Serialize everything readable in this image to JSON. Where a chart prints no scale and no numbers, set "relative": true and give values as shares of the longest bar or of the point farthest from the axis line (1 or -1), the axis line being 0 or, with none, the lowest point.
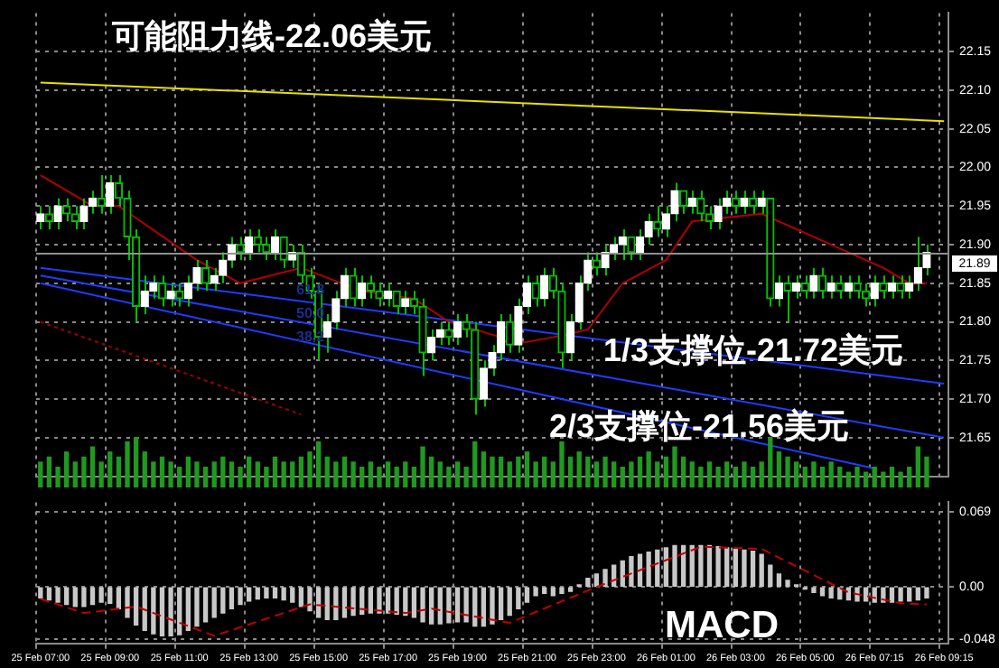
{
  "chart_data": [
    {
      "type": "candlestick",
      "categories": [
        null,
        null,
        null,
        null,
        null,
        null,
        null,
        null,
        null,
        null,
        null,
        null,
        null,
        null,
        null,
        null,
        null,
        null,
        null,
        null,
        null,
        null,
        null,
        null,
        null,
        null,
        null,
        null,
        null,
        null,
        null,
        null,
        null,
        null,
        null,
        null,
        null,
        null,
        null,
        null,
        null,
        null,
        null,
        null,
        null,
        null,
        null,
        null,
        null,
        null,
        null,
        null,
        null,
        null,
        null,
        null,
        null,
        null,
        null,
        null,
        null,
        null,
        null,
        null,
        null,
        null,
        null,
        null,
        null,
        null,
        null,
        null,
        null,
        null,
        null,
        null,
        null,
        null,
        null,
        null,
        null,
        null,
        null,
        null,
        null,
        null,
        null,
        null,
        null,
        null,
        null,
        null,
        null,
        null,
        null,
        null,
        null,
        null,
        null,
        null,
        null,
        null,
        null,
        null,
        null
      ],
      "color": "#00c000",
      "colors": [
        "#ffffff",
        "#00c000",
        "#ffffff",
        "#00c000",
        "#00c000",
        "#ffffff",
        "#ffffff",
        "#00c000",
        "#ffffff",
        "#00c000",
        "#00c000",
        "#00c000",
        "#ffffff",
        "#ffffff",
        "#00c000",
        "#ffffff",
        "#00c000",
        "#ffffff",
        "#ffffff",
        "#00c000",
        "#ffffff",
        "#ffffff",
        "#ffffff",
        "#00c000",
        "#ffffff",
        "#00c000",
        "#00c000",
        "#ffffff",
        "#00c000",
        "#ffffff",
        "#00c000",
        "#00c000",
        "#00c000",
        "#ffffff",
        "#ffffff",
        "#ffffff",
        "#00c000",
        "#ffffff",
        "#00c000",
        "#00c000",
        "#ffffff",
        "#00c000",
        "#ffffff",
        "#00c000",
        "#00c000",
        "#ffffff",
        "#ffffff",
        "#00c000",
        "#ffffff",
        "#00c000",
        "#00c000",
        "#ffffff",
        "#ffffff",
        "#ffffff",
        "#00c000",
        "#ffffff",
        "#ffffff",
        "#00c000",
        "#ffffff",
        "#00c000",
        "#00c000",
        "#ffffff",
        "#ffffff",
        "#ffffff",
        "#00c000",
        "#ffffff",
        "#ffffff",
        "#ffffff",
        "#00c000",
        "#ffffff",
        "#ffffff",
        "#00c000",
        "#ffffff",
        "#ffffff",
        "#00c000",
        "#ffffff",
        "#00c000",
        "#00c000",
        "#ffffff",
        "#ffffff",
        "#00c000",
        "#ffffff",
        "#00c000",
        "#ffffff",
        "#00c000",
        "#ffffff",
        "#00c000",
        "#ffffff",
        "#00c000",
        "#ffffff",
        "#00c000",
        "#ffffff",
        "#00c000",
        "#ffffff",
        "#00c000",
        "#00c000",
        "#ffffff",
        "#00c000",
        "#ffffff",
        "#00c000",
        "#ffffff",
        "#ffffff",
        "#ffffff",
        null,
        null
      ],
      "ohlc": [
        [
          21.93,
          21.95,
          21.92,
          21.94
        ],
        [
          21.94,
          21.95,
          21.92,
          21.93
        ],
        [
          21.93,
          21.96,
          21.92,
          21.95
        ],
        [
          21.95,
          21.96,
          21.93,
          21.94
        ],
        [
          21.94,
          21.95,
          21.92,
          21.93
        ],
        [
          21.93,
          21.96,
          21.92,
          21.95
        ],
        [
          21.95,
          21.97,
          21.94,
          21.96
        ],
        [
          21.96,
          21.99,
          21.94,
          21.95
        ],
        [
          21.95,
          21.99,
          21.94,
          21.98
        ],
        [
          21.98,
          21.99,
          21.95,
          21.96
        ],
        [
          21.96,
          21.97,
          21.88,
          21.91
        ],
        [
          21.91,
          21.92,
          21.8,
          21.82
        ],
        [
          21.82,
          21.86,
          21.81,
          21.84
        ],
        [
          21.84,
          21.86,
          21.83,
          21.85
        ],
        [
          21.85,
          21.86,
          21.82,
          21.83
        ],
        [
          21.83,
          21.85,
          21.82,
          21.84
        ],
        [
          21.84,
          21.85,
          21.82,
          21.83
        ],
        [
          21.83,
          21.86,
          21.82,
          21.85
        ],
        [
          21.85,
          21.88,
          21.84,
          21.87
        ],
        [
          21.87,
          21.88,
          21.84,
          21.85
        ],
        [
          21.85,
          21.87,
          21.84,
          21.86
        ],
        [
          21.86,
          21.89,
          21.85,
          21.88
        ],
        [
          21.88,
          21.91,
          21.87,
          21.9
        ],
        [
          21.9,
          21.91,
          21.88,
          21.89
        ],
        [
          21.89,
          21.92,
          21.88,
          21.91
        ],
        [
          21.91,
          21.92,
          21.89,
          21.9
        ],
        [
          21.9,
          21.91,
          21.88,
          21.89
        ],
        [
          21.89,
          21.92,
          21.88,
          21.91
        ],
        [
          21.91,
          21.91,
          21.87,
          21.88
        ],
        [
          21.88,
          21.9,
          21.87,
          21.89
        ],
        [
          21.89,
          21.9,
          21.85,
          21.86
        ],
        [
          21.86,
          21.87,
          21.83,
          21.84
        ],
        [
          21.84,
          21.85,
          21.75,
          21.78
        ],
        [
          21.78,
          21.81,
          21.76,
          21.8
        ],
        [
          21.8,
          21.84,
          21.79,
          21.83
        ],
        [
          21.83,
          21.87,
          21.82,
          21.86
        ],
        [
          21.86,
          21.87,
          21.82,
          21.83
        ],
        [
          21.83,
          21.86,
          21.82,
          21.85
        ],
        [
          21.85,
          21.86,
          21.83,
          21.84
        ],
        [
          21.84,
          21.85,
          21.82,
          21.83
        ],
        [
          21.83,
          21.85,
          21.82,
          21.84
        ],
        [
          21.84,
          21.84,
          21.81,
          21.82
        ],
        [
          21.82,
          21.84,
          21.81,
          21.83
        ],
        [
          21.83,
          21.84,
          21.81,
          21.82
        ],
        [
          21.82,
          21.83,
          21.73,
          21.76
        ],
        [
          21.76,
          21.79,
          21.75,
          21.78
        ],
        [
          21.78,
          21.8,
          21.77,
          21.79
        ],
        [
          21.79,
          21.8,
          21.77,
          21.78
        ],
        [
          21.78,
          21.81,
          21.77,
          21.8
        ],
        [
          21.8,
          21.81,
          21.78,
          21.79
        ],
        [
          21.79,
          21.8,
          21.68,
          21.7
        ],
        [
          21.7,
          21.75,
          21.69,
          21.74
        ],
        [
          21.74,
          21.77,
          21.73,
          21.76
        ],
        [
          21.76,
          21.81,
          21.75,
          21.8
        ],
        [
          21.8,
          21.81,
          21.76,
          21.77
        ],
        [
          21.77,
          21.83,
          21.76,
          21.82
        ],
        [
          21.82,
          21.86,
          21.81,
          21.85
        ],
        [
          21.85,
          21.86,
          21.82,
          21.83
        ],
        [
          21.83,
          21.87,
          21.82,
          21.86
        ],
        [
          21.86,
          21.87,
          21.83,
          21.84
        ],
        [
          21.84,
          21.85,
          21.74,
          21.76
        ],
        [
          21.76,
          21.81,
          21.75,
          21.8
        ],
        [
          21.8,
          21.86,
          21.79,
          21.85
        ],
        [
          21.85,
          21.89,
          21.84,
          21.88
        ],
        [
          21.88,
          21.89,
          21.86,
          21.87
        ],
        [
          21.87,
          21.9,
          21.86,
          21.89
        ],
        [
          21.89,
          21.91,
          21.88,
          21.9
        ],
        [
          21.9,
          21.92,
          21.88,
          21.91
        ],
        [
          21.91,
          21.91,
          21.88,
          21.89
        ],
        [
          21.89,
          21.92,
          21.88,
          21.91
        ],
        [
          21.91,
          21.94,
          21.9,
          21.93
        ],
        [
          21.93,
          21.95,
          21.91,
          21.92
        ],
        [
          21.92,
          21.95,
          21.91,
          21.94
        ],
        [
          21.94,
          21.98,
          21.93,
          21.97
        ],
        [
          21.97,
          21.97,
          21.94,
          21.95
        ],
        [
          21.95,
          21.97,
          21.94,
          21.96
        ],
        [
          21.96,
          21.97,
          21.93,
          21.94
        ],
        [
          21.94,
          21.95,
          21.92,
          21.93
        ],
        [
          21.93,
          21.96,
          21.92,
          21.95
        ],
        [
          21.95,
          21.97,
          21.94,
          21.96
        ],
        [
          21.96,
          21.97,
          21.94,
          21.95
        ],
        [
          21.95,
          21.97,
          21.94,
          21.96
        ],
        [
          21.96,
          21.97,
          21.94,
          21.95
        ],
        [
          21.95,
          21.97,
          21.94,
          21.96
        ],
        [
          21.96,
          21.96,
          21.82,
          21.83
        ],
        [
          21.83,
          21.86,
          21.82,
          21.85
        ],
        [
          21.85,
          21.86,
          21.8,
          21.84
        ],
        [
          21.84,
          21.86,
          21.83,
          21.85
        ],
        [
          21.85,
          21.86,
          21.83,
          21.84
        ],
        [
          21.84,
          21.87,
          21.83,
          21.86
        ],
        [
          21.86,
          21.87,
          21.83,
          21.84
        ],
        [
          21.84,
          21.86,
          21.83,
          21.85
        ],
        [
          21.85,
          21.86,
          21.83,
          21.84
        ],
        [
          21.84,
          21.86,
          21.83,
          21.85
        ],
        [
          21.85,
          21.86,
          21.83,
          21.84
        ],
        [
          21.84,
          21.85,
          21.82,
          21.83
        ],
        [
          21.83,
          21.86,
          21.82,
          21.85
        ],
        [
          21.85,
          21.86,
          21.83,
          21.84
        ],
        [
          21.84,
          21.86,
          21.83,
          21.85
        ],
        [
          21.85,
          21.86,
          21.83,
          21.84
        ],
        [
          21.84,
          21.86,
          21.83,
          21.85
        ],
        [
          21.85,
          21.91,
          21.84,
          21.87
        ],
        [
          21.87,
          21.9,
          21.86,
          21.89
        ],
        null,
        null
      ],
      "series": [
        {
          "type": "line",
          "color": "#b00000",
          "values": [
            21.99,
            null,
            null,
            null,
            null,
            null,
            21.95,
            null,
            null,
            21.95,
            null,
            null,
            null,
            null,
            null,
            null,
            null,
            null,
            21.88,
            null,
            null,
            null,
            null,
            21.85,
            null,
            null,
            null,
            null,
            null,
            null,
            21.87,
            null,
            null,
            null,
            null,
            null,
            null,
            21.84,
            null,
            null,
            null,
            null,
            null,
            21.83,
            null,
            null,
            null,
            21.8,
            null,
            null,
            null,
            null,
            null,
            21.78,
            21.77,
            null,
            null,
            null,
            null,
            21.78,
            null,
            null,
            null,
            21.79,
            null,
            null,
            null,
            21.85,
            null,
            null,
            null,
            null,
            21.88,
            null,
            null,
            21.93,
            null,
            null,
            null,
            null,
            null,
            null,
            null,
            21.94,
            null,
            null,
            null,
            null,
            null,
            21.91,
            null,
            null,
            null,
            21.89,
            null,
            null,
            null,
            21.87,
            null,
            null,
            21.85,
            null,
            21.85,
            null,
            null
          ]
        },
        {
          "type": "line",
          "color": "#e8e000",
          "values": [
            22.11,
            null,
            null,
            null,
            null,
            null,
            null,
            null,
            null,
            null,
            null,
            null,
            null,
            null,
            null,
            null,
            null,
            null,
            null,
            null,
            null,
            null,
            null,
            null,
            null,
            null,
            null,
            null,
            null,
            null,
            null,
            null,
            null,
            null,
            null,
            null,
            null,
            null,
            null,
            null,
            null,
            null,
            null,
            null,
            null,
            null,
            null,
            null,
            null,
            null,
            null,
            null,
            null,
            null,
            null,
            null,
            null,
            null,
            null,
            null,
            null,
            null,
            null,
            null,
            null,
            null,
            null,
            null,
            null,
            null,
            null,
            null,
            null,
            null,
            null,
            null,
            null,
            null,
            null,
            null,
            null,
            null,
            null,
            null,
            null,
            null,
            null,
            null,
            null,
            null,
            null,
            null,
            null,
            null,
            null,
            null,
            null,
            null,
            null,
            null,
            null,
            null,
            null,
            null,
            22.06
          ]
        },
        {
          "type": "line",
          "color": "#1f3cff",
          "values": [
            21.87,
            null,
            null,
            null,
            null,
            null,
            null,
            null,
            null,
            null,
            null,
            null,
            null,
            null,
            null,
            null,
            null,
            null,
            null,
            null,
            null,
            null,
            null,
            null,
            null,
            null,
            null,
            null,
            null,
            null,
            null,
            null,
            null,
            null,
            null,
            null,
            null,
            null,
            null,
            null,
            null,
            null,
            null,
            null,
            null,
            null,
            null,
            null,
            null,
            null,
            null,
            null,
            null,
            null,
            null,
            null,
            null,
            null,
            null,
            null,
            null,
            null,
            null,
            null,
            null,
            null,
            null,
            null,
            null,
            null,
            null,
            null,
            null,
            null,
            null,
            null,
            null,
            null,
            null,
            null,
            null,
            null,
            null,
            null,
            null,
            null,
            null,
            null,
            null,
            null,
            null,
            null,
            null,
            null,
            null,
            null,
            null,
            null,
            null,
            null,
            null,
            null,
            null,
            null,
            21.72
          ]
        },
        {
          "type": "line",
          "color": "#1f3cff",
          "values": [
            21.86,
            null,
            null,
            null,
            null,
            null,
            null,
            null,
            null,
            null,
            null,
            null,
            null,
            null,
            null,
            null,
            null,
            null,
            null,
            null,
            null,
            null,
            null,
            null,
            null,
            null,
            null,
            null,
            null,
            null,
            null,
            null,
            null,
            null,
            null,
            null,
            null,
            null,
            null,
            null,
            null,
            null,
            null,
            null,
            null,
            null,
            null,
            null,
            null,
            null,
            null,
            null,
            null,
            null,
            null,
            null,
            null,
            null,
            null,
            null,
            null,
            null,
            null,
            null,
            null,
            null,
            null,
            null,
            null,
            null,
            null,
            null,
            null,
            null,
            null,
            null,
            null,
            null,
            null,
            null,
            null,
            null,
            null,
            null,
            null,
            null,
            null,
            null,
            null,
            null,
            null,
            null,
            null,
            null,
            null,
            null,
            null,
            null,
            null,
            null,
            null,
            null,
            null,
            null,
            21.65
          ]
        },
        {
          "type": "line",
          "color": "#1f3cff",
          "values": [
            21.85,
            null,
            null,
            null,
            null,
            null,
            null,
            null,
            null,
            null,
            null,
            null,
            null,
            null,
            null,
            null,
            null,
            null,
            null,
            null,
            null,
            null,
            null,
            null,
            null,
            null,
            null,
            null,
            null,
            null,
            null,
            null,
            null,
            null,
            null,
            null,
            null,
            null,
            null,
            null,
            null,
            null,
            null,
            null,
            null,
            null,
            null,
            null,
            null,
            null,
            null,
            null,
            null,
            null,
            null,
            null,
            null,
            null,
            null,
            null,
            null,
            null,
            null,
            null,
            null,
            null,
            null,
            null,
            null,
            null,
            null,
            null,
            null,
            null,
            null,
            null,
            null,
            null,
            null,
            null,
            null,
            null,
            null,
            null,
            null,
            null,
            null,
            null,
            null,
            null,
            null,
            null,
            null,
            null,
            null,
            null,
            21.61,
            null,
            null,
            null,
            null,
            null,
            null,
            null,
            null
          ]
        },
        {
          "type": "line",
          "color": "#a00000",
          "line_style": "dotted",
          "values": [
            21.8,
            null,
            null,
            null,
            null,
            null,
            null,
            null,
            null,
            null,
            null,
            null,
            null,
            null,
            null,
            null,
            null,
            null,
            null,
            null,
            null,
            null,
            null,
            null,
            null,
            null,
            null,
            null,
            null,
            null,
            21.68,
            null,
            null,
            null,
            null,
            null,
            null,
            null,
            null,
            null,
            null,
            null,
            null,
            null,
            null,
            null,
            null,
            null,
            null,
            null,
            null,
            null,
            null,
            null,
            null,
            null,
            null,
            null,
            null,
            null,
            null,
            null,
            null,
            null,
            null,
            null,
            null,
            null,
            null,
            null,
            null,
            null,
            null,
            null,
            null,
            null,
            null,
            null,
            null,
            null,
            null,
            null,
            null,
            null,
            null,
            null,
            null,
            null,
            null,
            null,
            null,
            null,
            null,
            null,
            null,
            null,
            null,
            null,
            null,
            null,
            null,
            null,
            null,
            null,
            null
          ]
        }
      ],
      "ylim": [
        21.6,
        22.2
      ],
      "yticks": [
        22.15,
        {
          "value": 22.1,
          "label": "22.10"
        },
        22.05,
        {
          "value": 22.0,
          "label": "22.00"
        },
        21.95,
        {
          "value": 21.9,
          "label": "21.90"
        },
        21.85,
        {
          "value": 21.8,
          "label": "21.80"
        },
        21.75,
        {
          "value": 21.7,
          "label": "21.70"
        },
        21.65
      ],
      "grid": true,
      "tick_labels": "y",
      "ref_lines": [
        {
          "axis": "y",
          "value": 21.89,
          "label": "21.89",
          "color": "#909090"
        }
      ],
      "annotations": [
        "可能阻力线-22.06美元",
        "1/3支撑位-21.72美元",
        "2/3支撑位-21.56美元",
        "61.8",
        "50.0",
        "38.2"
      ]
    },
    {
      "type": "bar",
      "relative": true,
      "tick_labels": false,
      "color": "#1f9a1f",
      "categories": [
        null,
        null,
        null,
        null,
        null,
        null,
        null,
        null,
        null,
        null,
        null,
        null,
        null,
        null,
        null,
        null,
        null,
        null,
        null,
        null,
        null,
        null,
        null,
        null,
        null,
        null,
        null,
        null,
        null,
        null,
        null,
        null,
        null,
        null,
        null,
        null,
        null,
        null,
        null,
        null,
        null,
        null,
        null,
        null,
        null,
        null,
        null,
        null,
        null,
        null,
        null,
        null,
        null,
        null,
        null,
        null,
        null,
        null,
        null,
        null,
        null,
        null,
        null,
        null,
        null,
        null,
        null,
        null,
        null,
        null,
        null,
        null,
        null,
        null,
        null,
        null,
        null,
        null,
        null,
        null,
        null,
        null,
        null,
        null,
        null,
        null,
        null,
        null,
        null,
        null,
        null,
        null,
        null,
        null,
        null,
        null,
        null,
        null,
        null,
        null,
        null,
        null,
        null,
        null,
        null
      ],
      "values": [
        0.5,
        0.6,
        0.4,
        0.7,
        0.5,
        0.6,
        0.8,
        0.5,
        0.7,
        0.6,
        0.9,
        1.0,
        0.7,
        0.5,
        0.6,
        0.5,
        0.4,
        0.6,
        0.5,
        0.4,
        0.5,
        0.6,
        0.5,
        0.4,
        0.6,
        0.5,
        0.4,
        0.6,
        0.5,
        0.5,
        0.6,
        0.7,
        0.9,
        0.6,
        0.5,
        0.6,
        0.5,
        0.4,
        0.5,
        0.4,
        0.5,
        0.4,
        0.5,
        0.4,
        0.8,
        0.6,
        0.5,
        0.4,
        0.5,
        0.4,
        0.9,
        0.7,
        0.6,
        0.6,
        0.5,
        0.6,
        0.7,
        0.5,
        0.6,
        0.5,
        0.9,
        0.6,
        0.7,
        0.6,
        0.5,
        0.6,
        0.5,
        0.4,
        0.5,
        0.6,
        0.7,
        0.5,
        0.6,
        0.8,
        0.6,
        0.5,
        0.4,
        0.5,
        0.4,
        0.5,
        0.4,
        0.5,
        0.4,
        0.5,
        1.0,
        0.7,
        0.6,
        0.5,
        0.4,
        0.5,
        0.4,
        0.5,
        0.4,
        0.3,
        0.4,
        0.3,
        0.4,
        0.3,
        0.4,
        0.3,
        0.4,
        0.8,
        0.6,
        null,
        null
      ]
    },
    {
      "type": "bar",
      "categories": [
        "25 Feb 07:00",
        null,
        null,
        null,
        null,
        null,
        null,
        null,
        "25 Feb 09:00",
        null,
        null,
        null,
        null,
        null,
        null,
        null,
        "25 Feb 11:00",
        null,
        null,
        null,
        null,
        null,
        null,
        null,
        "25 Feb 13:00",
        null,
        null,
        null,
        null,
        null,
        null,
        null,
        "25 Feb 15:00",
        null,
        null,
        null,
        null,
        null,
        null,
        null,
        "25 Feb 17:00",
        null,
        null,
        null,
        null,
        null,
        null,
        null,
        "25 Feb 19:00",
        null,
        null,
        null,
        null,
        null,
        null,
        null,
        "25 Feb 21:00",
        null,
        null,
        null,
        null,
        null,
        null,
        null,
        "25 Feb 23:00",
        null,
        null,
        null,
        null,
        null,
        null,
        null,
        "26 Feb 01:00",
        null,
        null,
        null,
        null,
        null,
        null,
        null,
        "26 Feb 03:00",
        null,
        null,
        null,
        null,
        null,
        null,
        null,
        "26 Feb 05:00",
        null,
        null,
        null,
        null,
        null,
        null,
        null,
        "26 Feb 07:15",
        null,
        null,
        null,
        null,
        null,
        null,
        null,
        "26 Feb 09:15"
      ],
      "series": [
        {
          "type": "bar",
          "color": "#c8c8c8",
          "values": [
            -0.01,
            -0.012,
            -0.014,
            -0.016,
            -0.018,
            -0.018,
            -0.016,
            -0.014,
            -0.015,
            -0.02,
            -0.028,
            -0.035,
            -0.04,
            -0.043,
            -0.045,
            -0.045,
            -0.044,
            -0.04,
            -0.036,
            -0.032,
            -0.028,
            -0.024,
            -0.02,
            -0.016,
            -0.013,
            -0.011,
            -0.01,
            -0.01,
            -0.012,
            -0.014,
            -0.018,
            -0.022,
            -0.028,
            -0.03,
            -0.03,
            -0.028,
            -0.026,
            -0.025,
            -0.024,
            -0.024,
            -0.024,
            -0.025,
            -0.026,
            -0.028,
            -0.032,
            -0.034,
            -0.034,
            -0.033,
            -0.032,
            -0.032,
            -0.036,
            -0.036,
            -0.034,
            -0.03,
            -0.026,
            -0.02,
            -0.014,
            -0.008,
            -0.006,
            -0.008,
            -0.006,
            -0.004,
            0.002,
            0.008,
            0.012,
            0.016,
            0.02,
            0.024,
            0.028,
            0.03,
            0.032,
            0.034,
            0.036,
            0.038,
            0.038,
            0.038,
            0.038,
            0.038,
            0.037,
            0.036,
            0.035,
            0.034,
            0.033,
            0.03,
            0.02,
            0.012,
            0.006,
            0.002,
            -0.002,
            -0.005,
            -0.008,
            -0.01,
            -0.011,
            -0.012,
            -0.013,
            -0.013,
            -0.014,
            -0.014,
            -0.014,
            -0.013,
            -0.013,
            -0.012,
            -0.01,
            null,
            null
          ]
        },
        {
          "type": "line",
          "color": "#c00000",
          "line_style": "dashed",
          "values": [
            -0.011,
            null,
            null,
            null,
            null,
            -0.024,
            null,
            null,
            null,
            null,
            null,
            -0.018,
            null,
            null,
            null,
            null,
            null,
            null,
            null,
            null,
            -0.045,
            null,
            null,
            null,
            null,
            null,
            null,
            null,
            null,
            null,
            null,
            -0.016,
            null,
            null,
            null,
            null,
            null,
            null,
            null,
            null,
            null,
            null,
            -0.024,
            null,
            null,
            -0.02,
            null,
            null,
            null,
            null,
            null,
            null,
            null,
            null,
            -0.033,
            null,
            null,
            null,
            null,
            null,
            null,
            null,
            null,
            null,
            0,
            null,
            null,
            null,
            null,
            null,
            null,
            null,
            null,
            null,
            null,
            null,
            0.037,
            null,
            null,
            null,
            null,
            null,
            null,
            0.035,
            null,
            null,
            null,
            null,
            null,
            null,
            null,
            null,
            null,
            -0.005,
            null,
            null,
            null,
            null,
            null,
            -0.015,
            null,
            null,
            -0.016,
            null,
            null
          ]
        }
      ],
      "ylim": [
        -0.052,
        0.078
      ],
      "yticks": [
        0.069,
        {
          "value": 0,
          "label": "0.00"
        },
        -0.048
      ],
      "grid": true,
      "annotations": [
        "MACD"
      ]
    }
  ]
}
